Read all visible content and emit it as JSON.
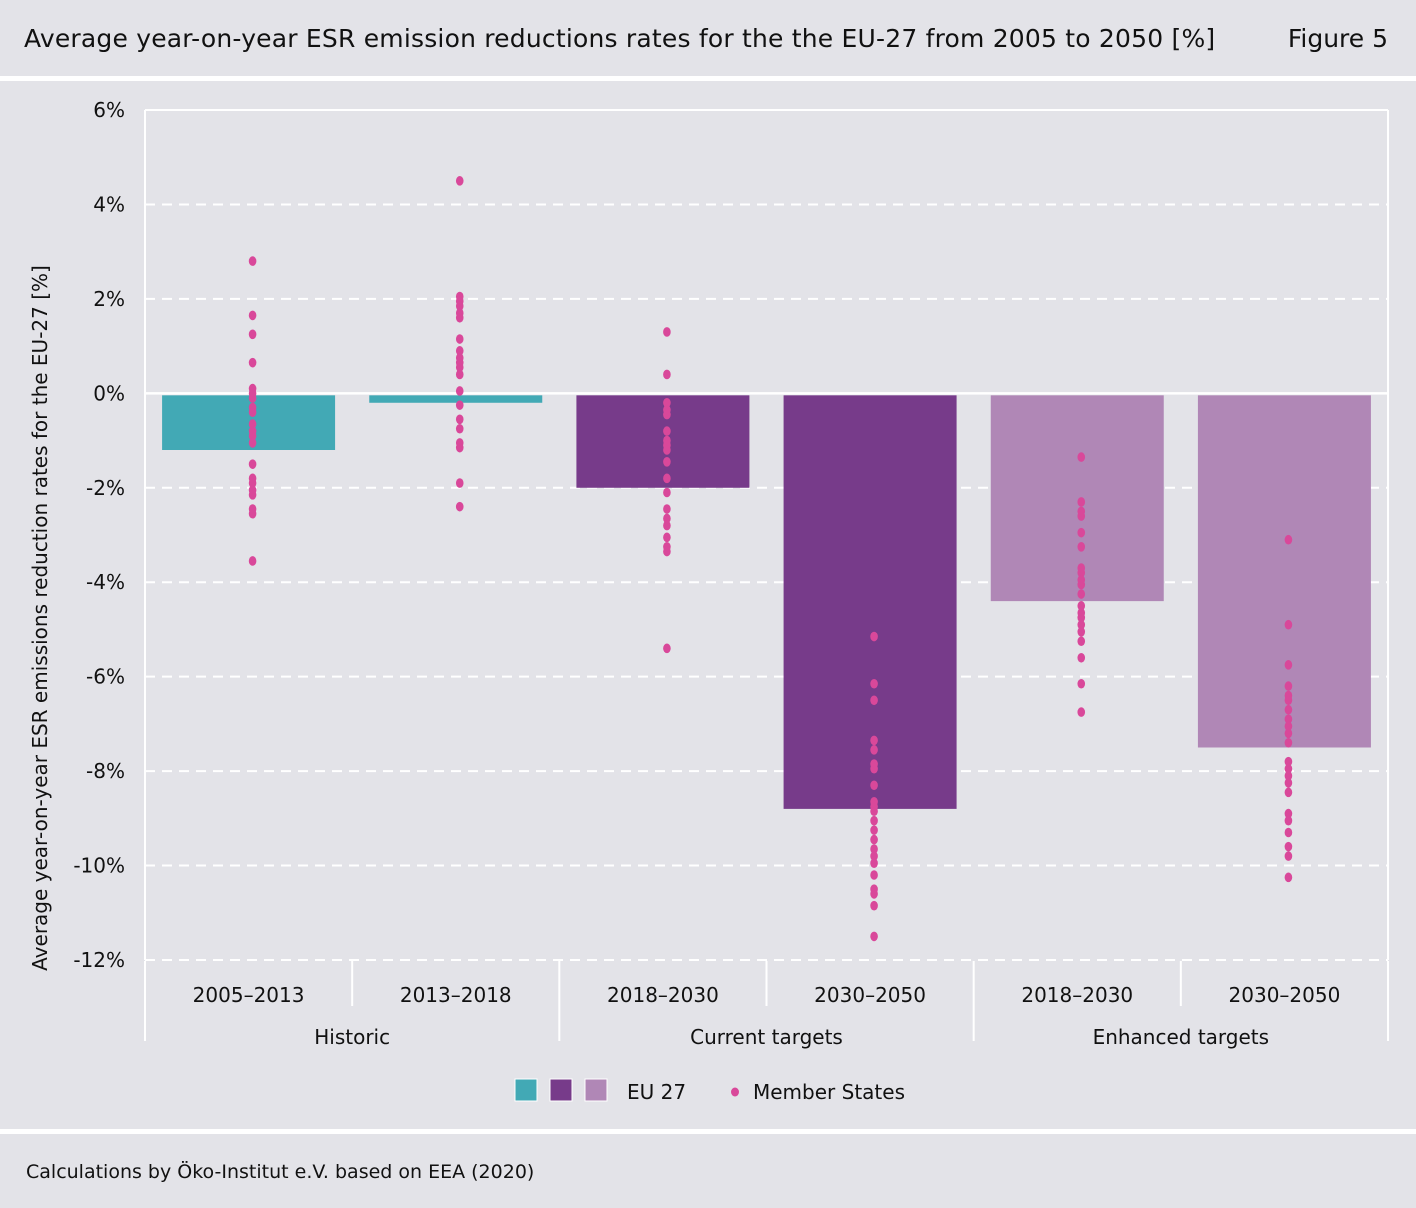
{
  "header": {
    "title": "Average year-on-year ESR emission reductions rates for the the EU-27 from 2005 to 2050 [%]",
    "figure_label": "Figure 5"
  },
  "footer": {
    "source": "Calculations by Öko-Institut e.V. based on EEA (2020)"
  },
  "legend": {
    "eu_label": "EU 27",
    "ms_label": "Member States"
  },
  "colors": {
    "historic": "#42a9b5",
    "current": "#773b8a",
    "enhanced": "#b087b6",
    "member_states": "#d9489a",
    "grid": "#ffffff"
  },
  "chart_data": {
    "type": "bar",
    "title": "Average year-on-year ESR emission reductions rates for the the EU-27 from 2005 to 2050 [%]",
    "ylabel": "Average year-on-year ESR emissions reduction rates for the EU-27 [%]",
    "ylim": [
      -12,
      6
    ],
    "yticks": [
      6,
      4,
      2,
      0,
      -2,
      -4,
      -6,
      -8,
      -10,
      -12
    ],
    "ytick_labels": [
      "6%",
      "4%",
      "2%",
      "0%",
      "-2%",
      "-4%",
      "-6%",
      "-8%",
      "-10%",
      "-12%"
    ],
    "grid": true,
    "legend_position": "bottom",
    "categories": [
      "2005–2013",
      "2013–2018",
      "2018–2030",
      "2030–2050",
      "2018–2030",
      "2030–2050"
    ],
    "groups": [
      {
        "label": "Historic",
        "span": [
          0,
          1
        ],
        "color_key": "historic"
      },
      {
        "label": "Current targets",
        "span": [
          2,
          3
        ],
        "color_key": "current"
      },
      {
        "label": "Enhanced targets",
        "span": [
          4,
          5
        ],
        "color_key": "enhanced"
      }
    ],
    "series": [
      {
        "name": "EU 27",
        "values": [
          -1.2,
          -0.2,
          -2.0,
          -8.8,
          -4.4,
          -7.5
        ]
      },
      {
        "name": "Member States",
        "points": [
          [
            2.8,
            1.65,
            1.25,
            0.65,
            0.1,
            0.0,
            -0.1,
            -0.3,
            -0.4,
            -0.65,
            -0.8,
            -0.9,
            -1.05,
            -1.5,
            -1.8,
            -1.9,
            -2.05,
            -2.15,
            -2.45,
            -2.55,
            -3.55
          ],
          [
            4.5,
            2.05,
            1.95,
            1.85,
            1.7,
            1.6,
            1.15,
            0.9,
            0.75,
            0.65,
            0.55,
            0.4,
            0.05,
            -0.25,
            -0.55,
            -0.75,
            -1.05,
            -1.15,
            -1.9,
            -2.4
          ],
          [
            1.3,
            0.4,
            -0.2,
            -0.35,
            -0.45,
            -0.8,
            -1.0,
            -1.1,
            -1.2,
            -1.45,
            -1.8,
            -2.1,
            -2.45,
            -2.65,
            -2.8,
            -3.05,
            -3.25,
            -3.35,
            -5.4
          ],
          [
            -5.15,
            -6.15,
            -6.5,
            -7.35,
            -7.55,
            -7.85,
            -7.95,
            -8.3,
            -8.65,
            -8.75,
            -8.85,
            -9.05,
            -9.25,
            -9.45,
            -9.65,
            -9.8,
            -9.95,
            -10.2,
            -10.5,
            -10.6,
            -10.85,
            -11.5
          ],
          [
            -1.35,
            -2.3,
            -2.5,
            -2.6,
            -2.95,
            -3.25,
            -3.7,
            -3.8,
            -3.95,
            -4.05,
            -4.25,
            -4.5,
            -4.65,
            -4.75,
            -4.9,
            -5.05,
            -5.25,
            -5.6,
            -6.15,
            -6.75
          ],
          [
            -3.1,
            -4.9,
            -5.75,
            -6.2,
            -6.4,
            -6.5,
            -6.7,
            -6.9,
            -7.05,
            -7.2,
            -7.4,
            -7.8,
            -7.95,
            -8.1,
            -8.25,
            -8.45,
            -8.9,
            -9.05,
            -9.3,
            -9.6,
            -9.8,
            -10.25
          ]
        ]
      }
    ]
  }
}
